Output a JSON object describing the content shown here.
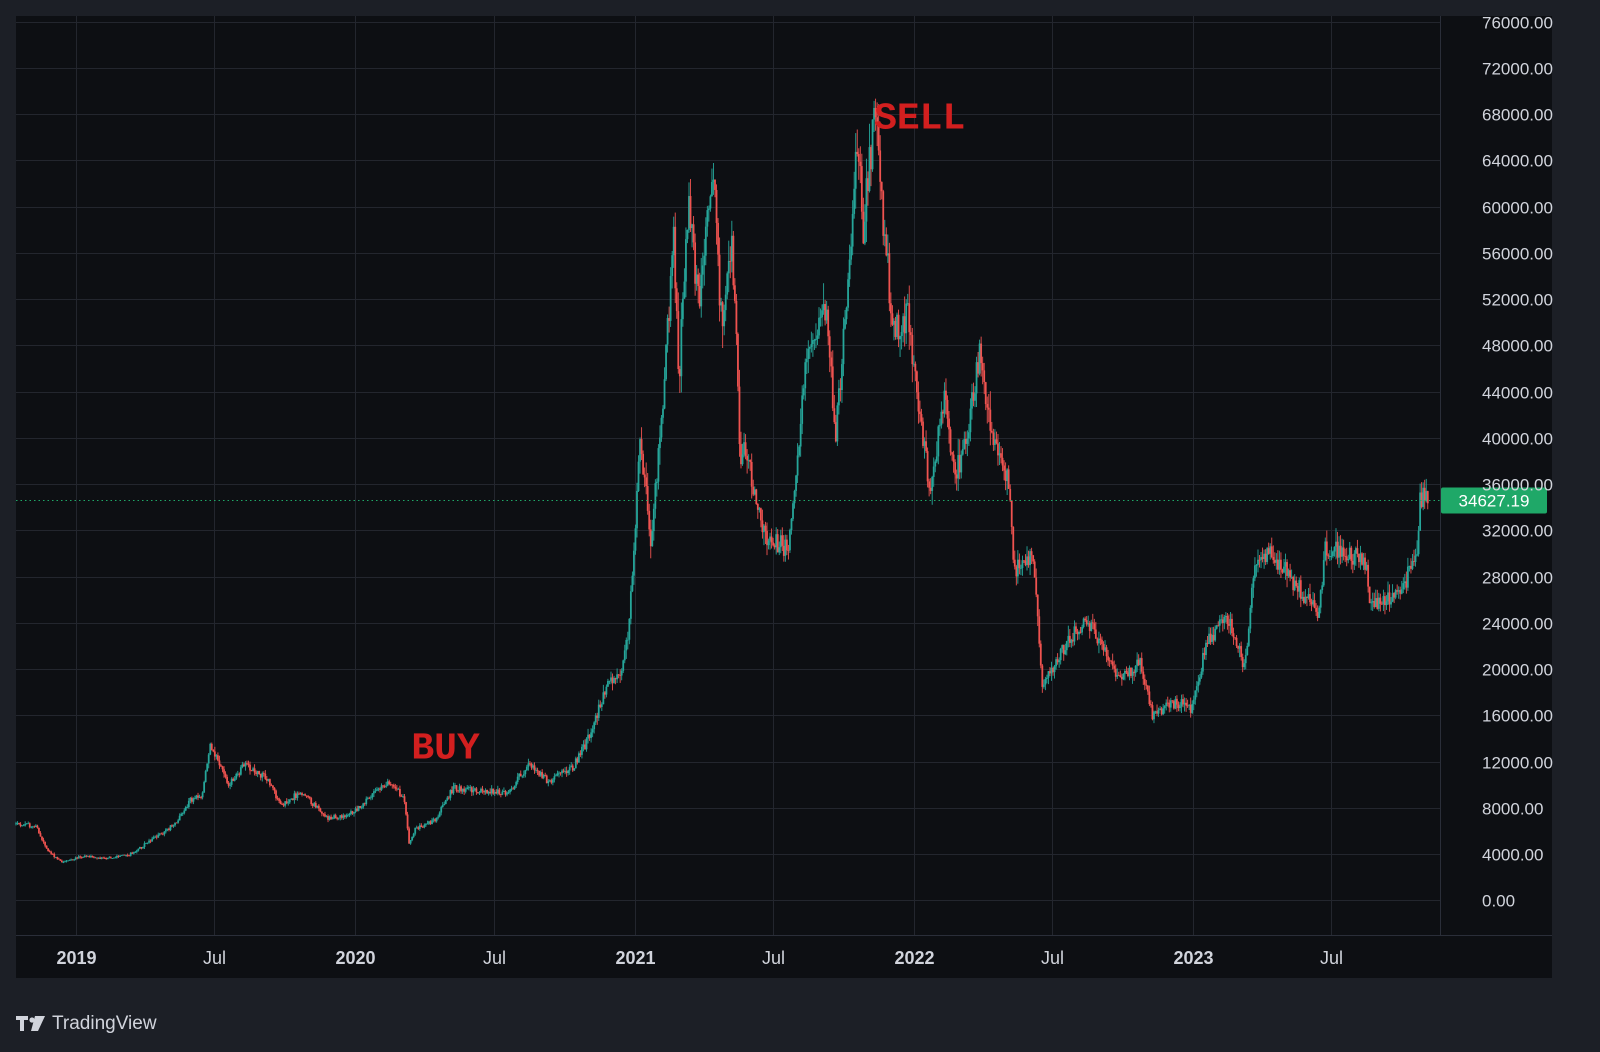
{
  "watermark": {
    "text": "TradingView",
    "logo_text": "17"
  },
  "colors": {
    "frame": "#1c1f26",
    "plot_bg": "#0d0f13",
    "grid": "#23262e",
    "axis_text": "#d1d4dc",
    "up": "#26a69a",
    "down": "#ef5350",
    "annotation": "#d21f1f",
    "price_tag": "#1fa868"
  },
  "chart_data": {
    "type": "line",
    "subtype": "candlestick",
    "title": "",
    "xlabel": "",
    "ylabel": "",
    "grid": true,
    "ylim": [
      -3000,
      76500
    ],
    "y_ticks": [
      "76000.00",
      "72000.00",
      "68000.00",
      "64000.00",
      "60000.00",
      "56000.00",
      "52000.00",
      "48000.00",
      "44000.00",
      "40000.00",
      "36000.00",
      "32000.00",
      "28000.00",
      "24000.00",
      "20000.00",
      "16000.00",
      "12000.00",
      "8000.00",
      "4000.00",
      "0.00"
    ],
    "x_ticks": [
      {
        "label": "2019",
        "date": "2019-01-01",
        "bold": true
      },
      {
        "label": "Jul",
        "date": "2019-07-01",
        "bold": false
      },
      {
        "label": "2020",
        "date": "2020-01-01",
        "bold": true
      },
      {
        "label": "Jul",
        "date": "2020-07-01",
        "bold": false
      },
      {
        "label": "2021",
        "date": "2021-01-01",
        "bold": true
      },
      {
        "label": "Jul",
        "date": "2021-07-01",
        "bold": false
      },
      {
        "label": "2022",
        "date": "2022-01-01",
        "bold": true
      },
      {
        "label": "Jul",
        "date": "2022-07-01",
        "bold": false
      },
      {
        "label": "2023",
        "date": "2023-01-01",
        "bold": true
      },
      {
        "label": "Jul",
        "date": "2023-07-01",
        "bold": false
      }
    ],
    "x_range": [
      "2018-10-15",
      "2023-11-20"
    ],
    "current_price": {
      "label": "34627.19",
      "value": 34627.19
    },
    "annotations": [
      {
        "text": "BUY",
        "date": "2020-03-15",
        "value": 13500
      },
      {
        "text": "SELL",
        "date": "2021-11-10",
        "value": 68000
      }
    ],
    "price_path": [
      [
        "2018-10-15",
        6600
      ],
      [
        "2018-11-10",
        6400
      ],
      [
        "2018-11-25",
        4300
      ],
      [
        "2018-12-15",
        3300
      ],
      [
        "2019-01-10",
        3800
      ],
      [
        "2019-02-10",
        3600
      ],
      [
        "2019-03-15",
        4000
      ],
      [
        "2019-04-10",
        5200
      ],
      [
        "2019-05-10",
        6500
      ],
      [
        "2019-05-30",
        8600
      ],
      [
        "2019-06-15",
        9000
      ],
      [
        "2019-06-26",
        13500
      ],
      [
        "2019-07-10",
        11500
      ],
      [
        "2019-07-20",
        10000
      ],
      [
        "2019-08-10",
        11800
      ],
      [
        "2019-09-10",
        10400
      ],
      [
        "2019-09-25",
        8300
      ],
      [
        "2019-10-25",
        9300
      ],
      [
        "2019-11-25",
        7200
      ],
      [
        "2019-12-20",
        7200
      ],
      [
        "2020-01-20",
        8800
      ],
      [
        "2020-02-12",
        10300
      ],
      [
        "2020-03-05",
        9000
      ],
      [
        "2020-03-12",
        5000
      ],
      [
        "2020-03-20",
        6200
      ],
      [
        "2020-04-15",
        6900
      ],
      [
        "2020-05-08",
        9700
      ],
      [
        "2020-06-10",
        9500
      ],
      [
        "2020-07-20",
        9200
      ],
      [
        "2020-08-15",
        11800
      ],
      [
        "2020-09-10",
        10300
      ],
      [
        "2020-10-10",
        11300
      ],
      [
        "2020-10-25",
        13000
      ],
      [
        "2020-11-10",
        15500
      ],
      [
        "2020-11-25",
        18500
      ],
      [
        "2020-12-15",
        19500
      ],
      [
        "2020-12-25",
        24000
      ],
      [
        "2021-01-08",
        40000
      ],
      [
        "2021-01-22",
        31000
      ],
      [
        "2021-02-08",
        44000
      ],
      [
        "2021-02-21",
        57000
      ],
      [
        "2021-02-28",
        45000
      ],
      [
        "2021-03-13",
        61000
      ],
      [
        "2021-03-25",
        52000
      ],
      [
        "2021-04-14",
        64000
      ],
      [
        "2021-04-25",
        49000
      ],
      [
        "2021-05-08",
        58000
      ],
      [
        "2021-05-20",
        37000
      ],
      [
        "2021-05-25",
        39000
      ],
      [
        "2021-06-22",
        31000
      ],
      [
        "2021-07-20",
        30500
      ],
      [
        "2021-08-15",
        47000
      ],
      [
        "2021-09-06",
        52000
      ],
      [
        "2021-09-21",
        40500
      ],
      [
        "2021-10-15",
        61000
      ],
      [
        "2021-10-20",
        66000
      ],
      [
        "2021-10-27",
        58000
      ],
      [
        "2021-11-10",
        68000
      ],
      [
        "2021-11-25",
        57000
      ],
      [
        "2021-12-05",
        49000
      ],
      [
        "2021-12-25",
        51000
      ],
      [
        "2022-01-10",
        41500
      ],
      [
        "2022-01-22",
        35000
      ],
      [
        "2022-02-10",
        44000
      ],
      [
        "2022-02-24",
        37000
      ],
      [
        "2022-03-10",
        39000
      ],
      [
        "2022-03-28",
        47500
      ],
      [
        "2022-04-15",
        40500
      ],
      [
        "2022-05-05",
        36500
      ],
      [
        "2022-05-12",
        28500
      ],
      [
        "2022-06-05",
        30000
      ],
      [
        "2022-06-18",
        19000
      ],
      [
        "2022-07-10",
        21000
      ],
      [
        "2022-08-14",
        24500
      ],
      [
        "2022-09-10",
        21500
      ],
      [
        "2022-09-25",
        19000
      ],
      [
        "2022-10-25",
        20500
      ],
      [
        "2022-11-09",
        16000
      ],
      [
        "2022-12-10",
        17100
      ],
      [
        "2022-12-30",
        16500
      ],
      [
        "2023-01-20",
        22500
      ],
      [
        "2023-02-15",
        24500
      ],
      [
        "2023-03-10",
        20000
      ],
      [
        "2023-03-20",
        28000
      ],
      [
        "2023-04-14",
        30500
      ],
      [
        "2023-05-10",
        27500
      ],
      [
        "2023-06-15",
        25000
      ],
      [
        "2023-06-23",
        30500
      ],
      [
        "2023-07-15",
        30000
      ],
      [
        "2023-08-14",
        29400
      ],
      [
        "2023-08-20",
        26000
      ],
      [
        "2023-09-12",
        25800
      ],
      [
        "2023-10-01",
        27000
      ],
      [
        "2023-10-20",
        29800
      ],
      [
        "2023-10-25",
        34500
      ],
      [
        "2023-11-01",
        35200
      ],
      [
        "2023-11-05",
        34627
      ]
    ]
  }
}
